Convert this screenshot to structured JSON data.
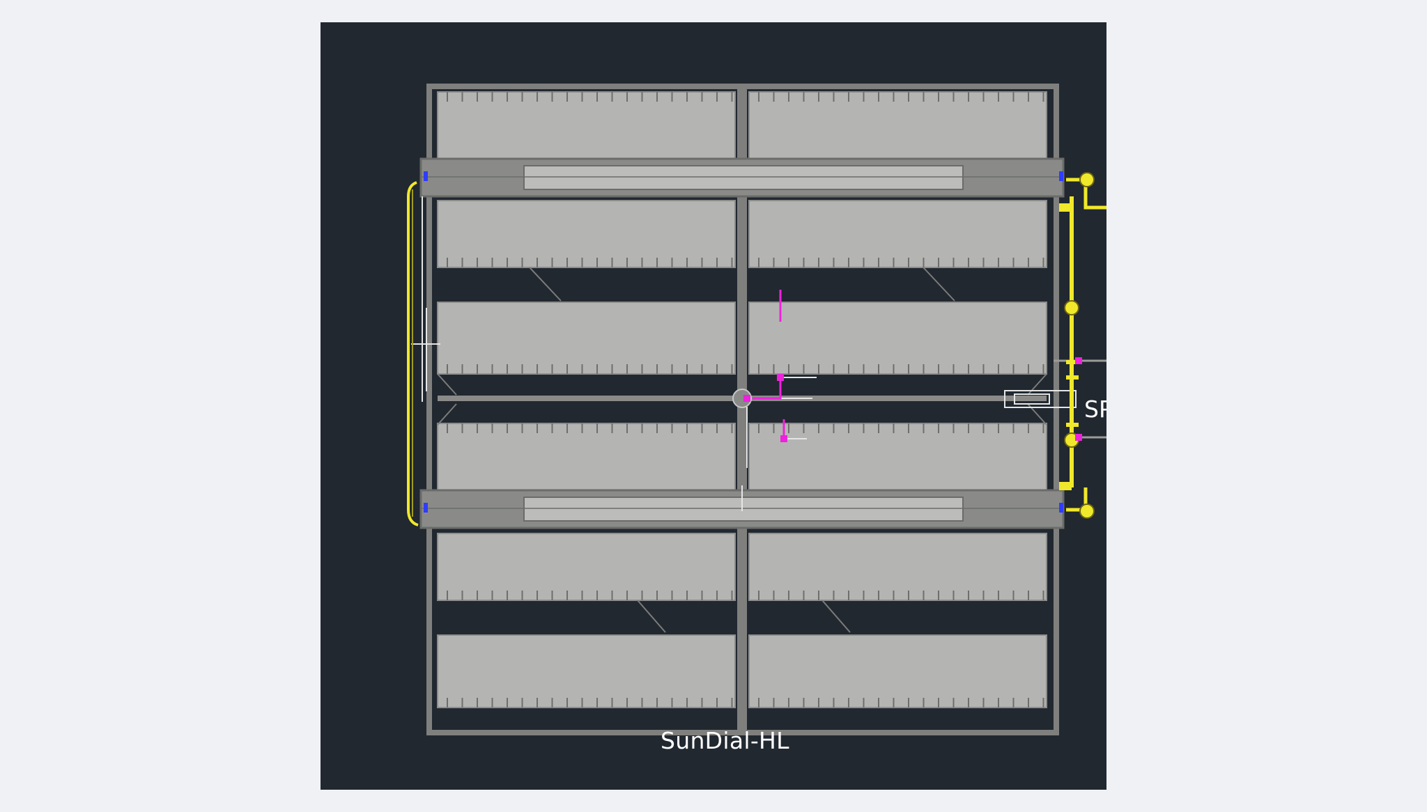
{
  "drawing": {
    "title": "SunDial-HL",
    "side_label": "SP",
    "colors": {
      "background": "#212830",
      "panel": "#b4b5b3",
      "frame": "#7f807e",
      "pipe": "#f0e82a",
      "marker": "#ee22dd",
      "connector": "#2f3cff"
    }
  }
}
